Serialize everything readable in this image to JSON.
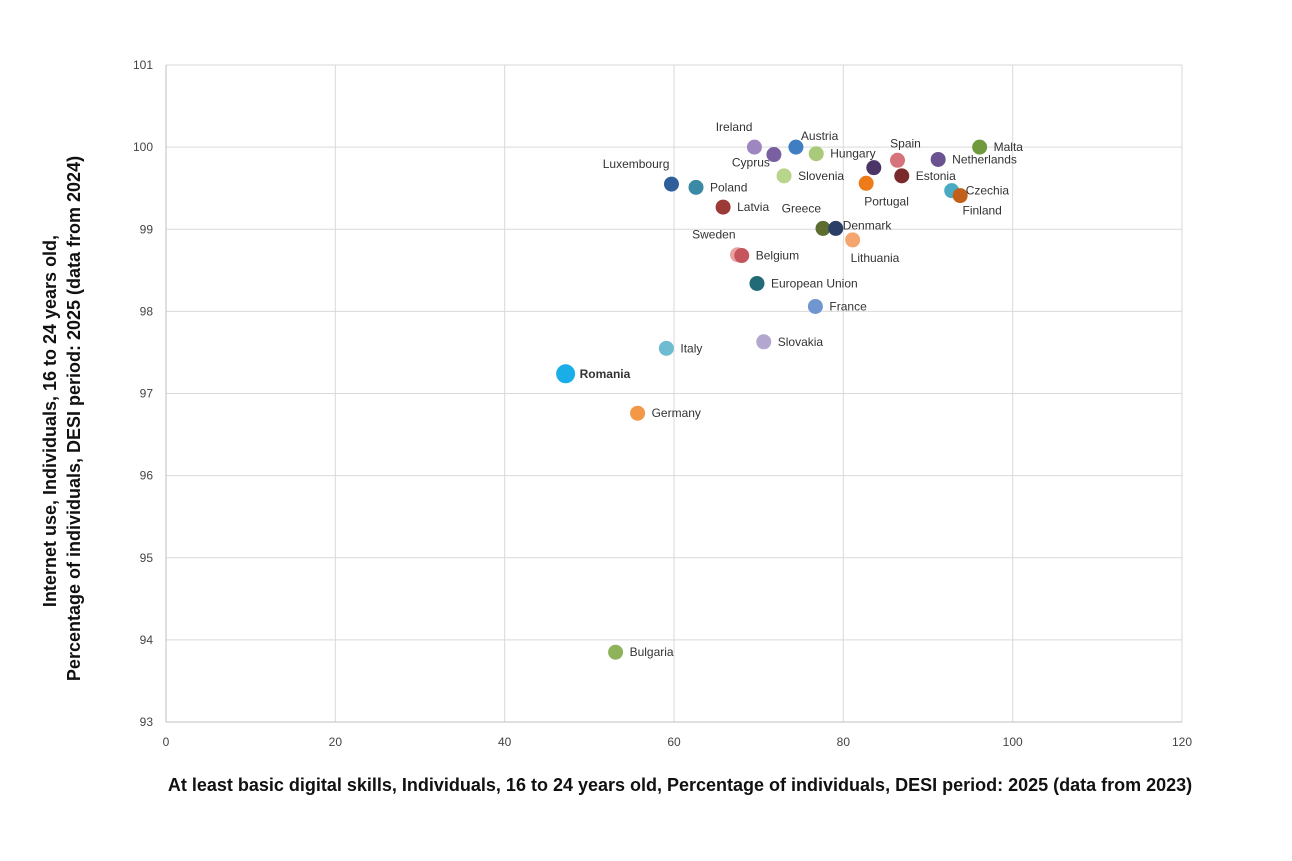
{
  "chart_data": {
    "type": "scatter",
    "title": "",
    "xlabel": "At least basic digital skills, Individuals, 16 to 24 years old, Percentage of individuals, DESI period: 2025 (data from 2023)",
    "ylabel_line1": "Internet use, Individuals, 16 to 24 years old,",
    "ylabel_line2": "Percentage of individuals, DESI period: 2025 (data from 2024)",
    "xlim": [
      0,
      120
    ],
    "ylim": [
      93,
      101
    ],
    "xticks": [
      0,
      20,
      40,
      60,
      80,
      100,
      120
    ],
    "yticks": [
      93,
      94,
      95,
      96,
      97,
      98,
      99,
      100,
      101
    ],
    "grid": true,
    "points": [
      {
        "label": "Ireland",
        "x": 69.5,
        "y": 100.0,
        "color": "#9e86c0",
        "label_pos": "above-left"
      },
      {
        "label": "Cyprus",
        "x": 71.8,
        "y": 99.91,
        "color": "#7a5fa3",
        "label_pos": "below-left"
      },
      {
        "label": "Austria",
        "x": 74.4,
        "y": 100.0,
        "color": "#3f7ec3",
        "label_pos": "above-right"
      },
      {
        "label": "Hungary",
        "x": 76.8,
        "y": 99.92,
        "color": "#a9c97b",
        "label_pos": "right"
      },
      {
        "label": "Slovenia",
        "x": 73.0,
        "y": 99.65,
        "color": "#b9d58c",
        "label_pos": "right"
      },
      {
        "label": "Spain",
        "x": 86.4,
        "y": 99.84,
        "color": "#d6737b",
        "label_pos": "above"
      },
      {
        "label": "Netherlands",
        "x": 91.2,
        "y": 99.85,
        "color": "#6b5290",
        "label_pos": "right"
      },
      {
        "label": "Malta",
        "x": 96.1,
        "y": 100.0,
        "color": "#6f9a3d",
        "label_pos": "right"
      },
      {
        "label": "Estonia",
        "x": 86.9,
        "y": 99.65,
        "color": "#7a2a2a",
        "label_pos": "right"
      },
      {
        "label": "Portugal",
        "x": 82.7,
        "y": 99.56,
        "color": "#ef7a1a",
        "label_pos": "below-right"
      },
      {
        "label": "",
        "x": 83.6,
        "y": 99.75,
        "color": "#4a3566",
        "label_pos": "none"
      },
      {
        "label": "Czechia",
        "x": 92.8,
        "y": 99.47,
        "color": "#4aaac2",
        "label_pos": "right"
      },
      {
        "label": "Finland",
        "x": 93.8,
        "y": 99.41,
        "color": "#c2601a",
        "label_pos": "below"
      },
      {
        "label": "Luxembourg",
        "x": 59.7,
        "y": 99.55,
        "color": "#2f5f9a",
        "label_pos": "above-left"
      },
      {
        "label": "Poland",
        "x": 62.6,
        "y": 99.51,
        "color": "#3a8aa6",
        "label_pos": "right"
      },
      {
        "label": "Latvia",
        "x": 65.8,
        "y": 99.27,
        "color": "#9b3a36",
        "label_pos": "right"
      },
      {
        "label": "Greece",
        "x": 77.6,
        "y": 99.01,
        "color": "#5c6d2f",
        "label_pos": "above-left"
      },
      {
        "label": "Denmark",
        "x": 79.1,
        "y": 99.01,
        "color": "#2b3f66",
        "label_pos": "right-tight"
      },
      {
        "label": "Lithuania",
        "x": 81.1,
        "y": 98.87,
        "color": "#f4a66e",
        "label_pos": "below-right"
      },
      {
        "label": "Sweden",
        "x": 67.5,
        "y": 98.69,
        "color": "#e8a0a0",
        "label_pos": "above-left"
      },
      {
        "label": "Belgium",
        "x": 68.0,
        "y": 98.68,
        "color": "#c5555d",
        "label_pos": "right"
      },
      {
        "label": "European Union",
        "x": 69.8,
        "y": 98.34,
        "color": "#236a78",
        "label_pos": "right"
      },
      {
        "label": "France",
        "x": 76.7,
        "y": 98.06,
        "color": "#7096cf",
        "label_pos": "right"
      },
      {
        "label": "Italy",
        "x": 59.1,
        "y": 97.55,
        "color": "#6fbcd2",
        "label_pos": "right"
      },
      {
        "label": "Slovakia",
        "x": 70.6,
        "y": 97.63,
        "color": "#b3a6cf",
        "label_pos": "right"
      },
      {
        "label": "Romania",
        "x": 47.2,
        "y": 97.24,
        "color": "#19aee8",
        "label_pos": "right",
        "highlight": true
      },
      {
        "label": "Germany",
        "x": 55.7,
        "y": 96.76,
        "color": "#f29846",
        "label_pos": "right"
      },
      {
        "label": "Bulgaria",
        "x": 53.1,
        "y": 93.85,
        "color": "#8fb35a",
        "label_pos": "right"
      }
    ]
  }
}
